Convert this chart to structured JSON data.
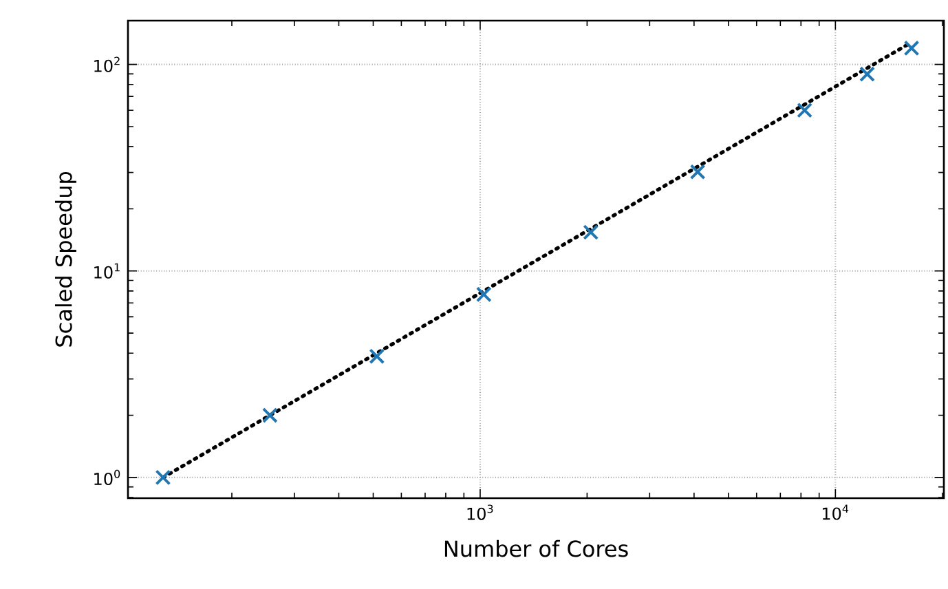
{
  "chart_data": {
    "type": "scatter",
    "xlabel": "Number of Cores",
    "ylabel": "Scaled Speedup",
    "log": "xy",
    "grid": true,
    "xlim": [
      102,
      20200
    ],
    "ylim": [
      0.794,
      163
    ],
    "xticks": [
      {
        "value": 1000,
        "label": "10$^{3}$"
      },
      {
        "value": 10000,
        "label": "10$^{4}$"
      }
    ],
    "yticks": [
      {
        "value": 1,
        "label": "10$^{0}$"
      },
      {
        "value": 10,
        "label": "10$^{1}$"
      },
      {
        "value": 100,
        "label": "10$^{2}$"
      }
    ],
    "series": [
      {
        "color": "#1f77b4",
        "marker": "cross",
        "x": [
          128,
          256,
          512,
          1024,
          2048,
          4096,
          8192,
          12288,
          16384
        ],
        "values": [
          1,
          2,
          3.86,
          7.7,
          15.4,
          30.2,
          60,
          89.8,
          120
        ]
      },
      {
        "type": "line",
        "color": "#000000",
        "marker": "none",
        "line_style": "dotted",
        "x": [
          128,
          16384
        ],
        "values": [
          1,
          128
        ]
      }
    ]
  }
}
